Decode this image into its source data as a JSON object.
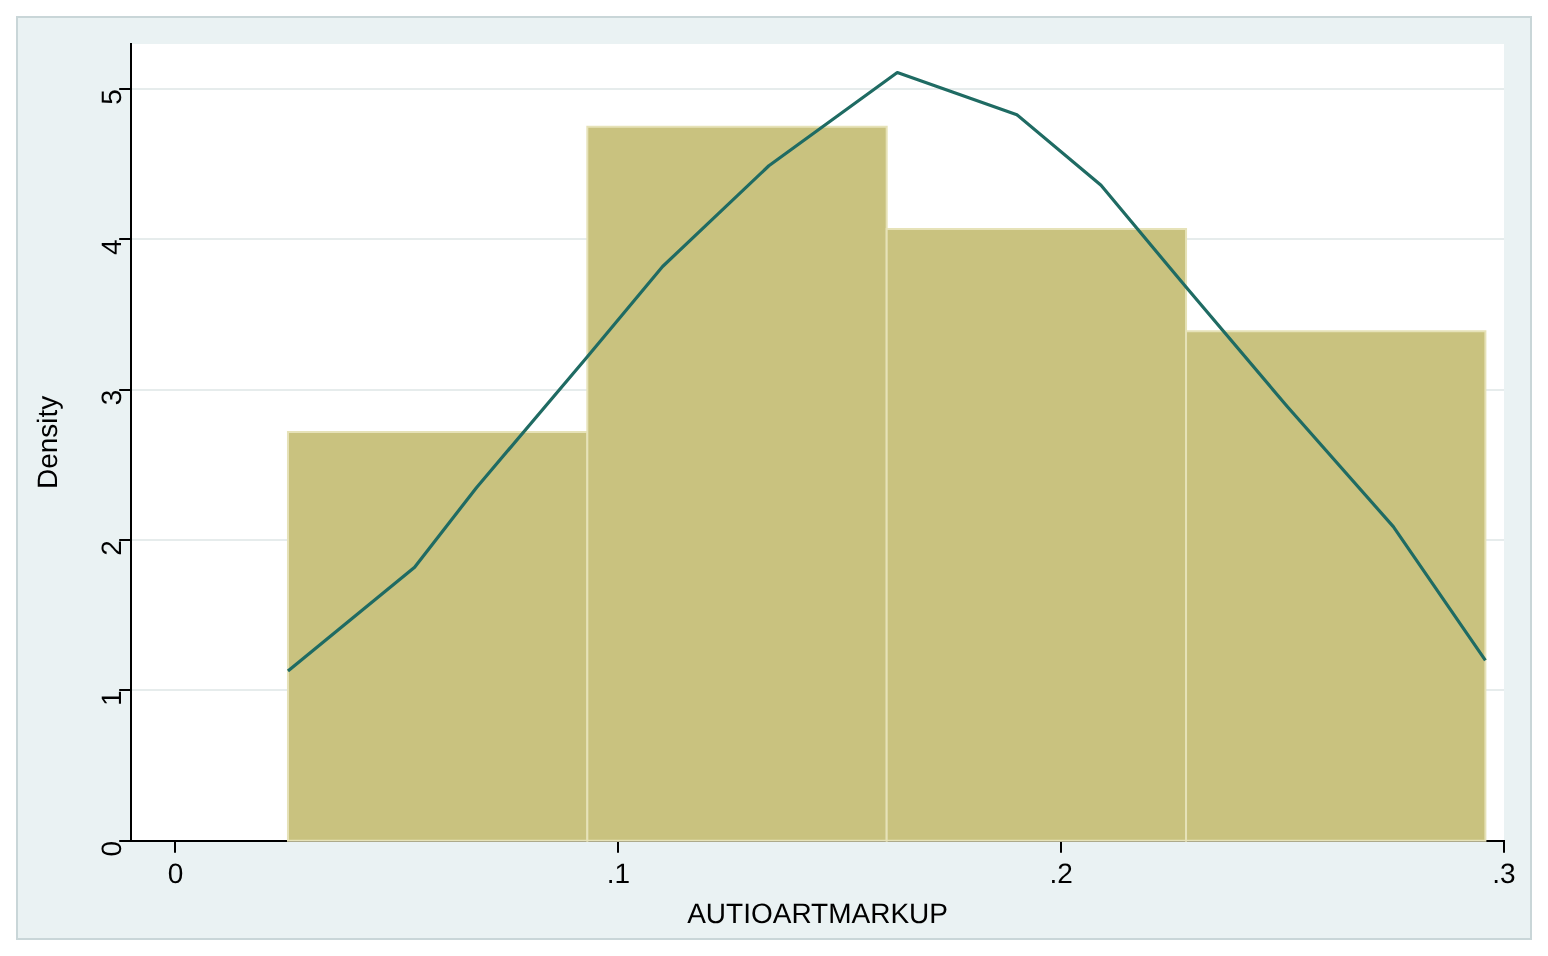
{
  "chart_data": {
    "type": "histogram",
    "xlabel": "AUTIOARTMARKUP",
    "ylabel": "Density",
    "bins": [
      0.0254,
      0.093,
      0.1606,
      0.2282,
      0.2958
    ],
    "values": [
      2.72,
      4.75,
      4.07,
      3.39
    ],
    "color": "#c9c27f",
    "series": [
      {
        "type": "line",
        "color": "#1f6b63",
        "x": [
          0.0254,
          0.054,
          0.068,
          0.093,
          0.11,
          0.134,
          0.163,
          0.19,
          0.209,
          0.228,
          0.251,
          0.275,
          0.2958
        ],
        "values": [
          1.13,
          1.82,
          2.35,
          3.22,
          3.82,
          4.49,
          5.11,
          4.83,
          4.36,
          3.69,
          2.89,
          2.09,
          1.2
        ]
      }
    ],
    "xlim": [
      -0.01,
      0.3
    ],
    "xticks": [
      {
        "value": 0,
        "label": "0"
      },
      {
        "value": 0.1,
        "label": ".1"
      },
      {
        "value": 0.2,
        "label": ".2"
      },
      {
        "value": 0.3,
        "label": ".3"
      }
    ],
    "ylim": [
      0,
      5.3
    ],
    "yticks": [
      0,
      1,
      2,
      3,
      4,
      5
    ],
    "grid": "y",
    "legend": false,
    "marker": "none"
  }
}
